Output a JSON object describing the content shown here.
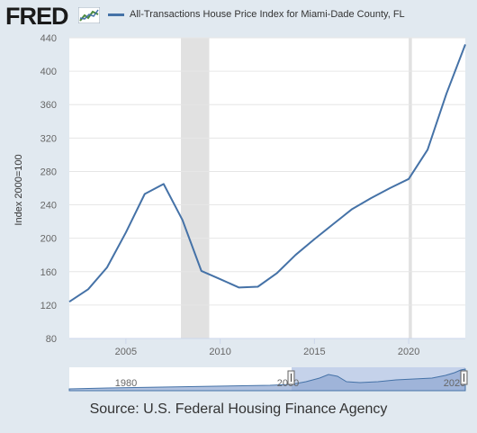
{
  "header": {
    "logo_text": "FRED",
    "logo_icon": "line-chart-icon"
  },
  "source_text": "Source: U.S. Federal Housing Finance Agency",
  "colors": {
    "series": "#4572a7",
    "recession": "#e1e1e1",
    "background": "#e1e9f0",
    "plot_bg": "#ffffff",
    "navigator_fill": "#c5d2ea"
  },
  "navigator": {
    "tick_labels": [
      "1980",
      "2000",
      "2020"
    ]
  },
  "chart_data": {
    "type": "line",
    "title": "",
    "xlabel": "",
    "ylabel": "Index 2000=100",
    "xlim": [
      2002.0,
      2023.0
    ],
    "ylim": [
      80,
      440
    ],
    "yticks": [
      80,
      120,
      160,
      200,
      240,
      280,
      320,
      360,
      400,
      440
    ],
    "xticks": [
      2005,
      2010,
      2015,
      2020
    ],
    "grid": true,
    "legend_position": "top",
    "recessions": [
      [
        2007.92,
        2009.42
      ],
      [
        2020.0,
        2020.17
      ]
    ],
    "series": [
      {
        "name": "All-Transactions House Price Index for Miami-Dade County, FL",
        "x": [
          2002,
          2003,
          2004,
          2005,
          2006,
          2007,
          2008,
          2009,
          2010,
          2011,
          2012,
          2013,
          2014,
          2015,
          2016,
          2017,
          2018,
          2019,
          2020,
          2021,
          2022,
          2023
        ],
        "y": [
          124,
          139,
          165,
          207,
          253,
          265,
          222,
          161,
          151,
          141,
          142,
          158,
          180,
          199,
          217,
          235,
          248,
          260,
          271,
          306,
          373,
          432
        ]
      }
    ]
  }
}
